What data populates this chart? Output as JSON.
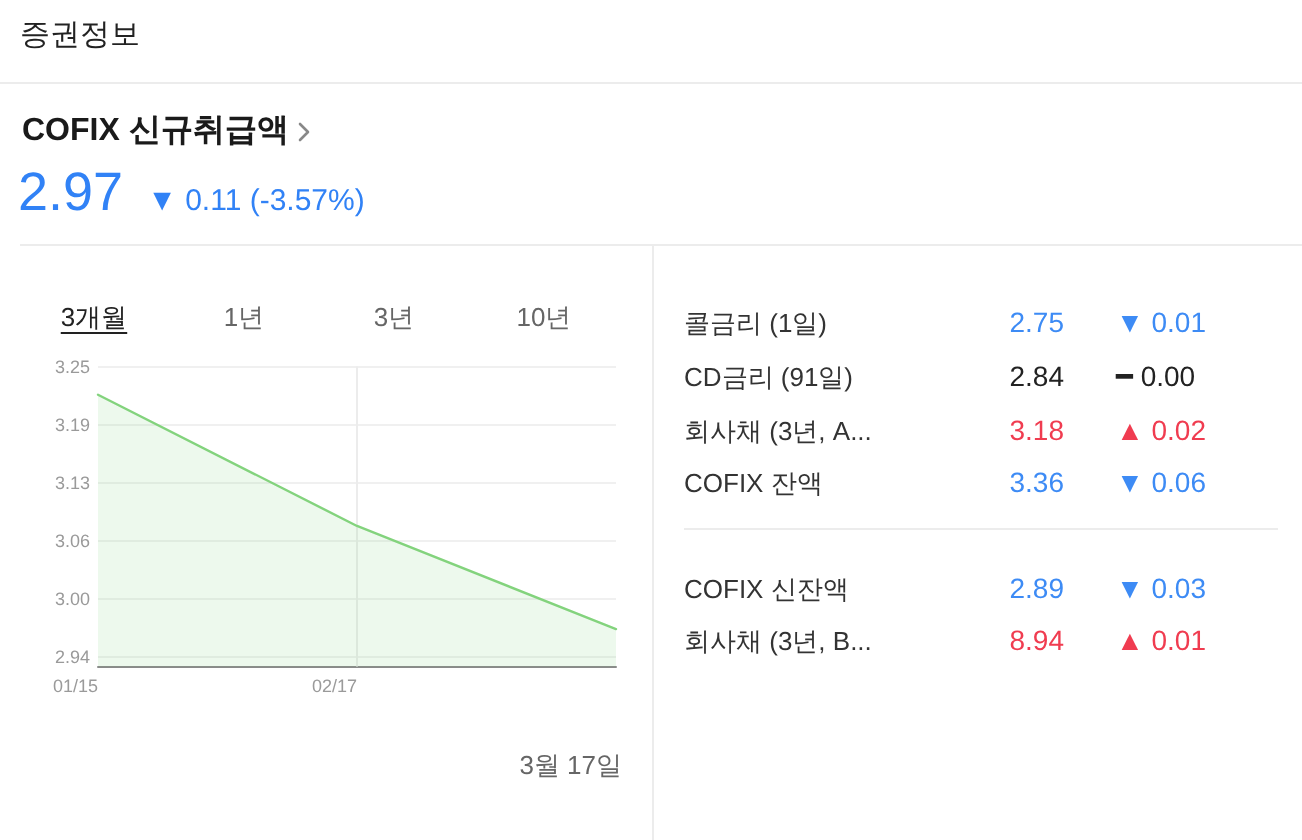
{
  "chart_data": [
    {
      "type": "area",
      "title": "COFIX 신규취급액",
      "subtitle": "2.97 ▼ 0.11 (-3.57%)",
      "categories": [
        "01/15",
        "02/17",
        null
      ],
      "values": [
        3.22,
        3.08,
        2.97
      ],
      "color": "#83d37d",
      "ylim": [
        2.93,
        3.25
      ],
      "yticks": [
        2.94,
        {
          "value": 3.002,
          "label": "3.00"
        },
        {
          "value": 3.064,
          "label": "3.06"
        },
        {
          "value": 3.126,
          "label": "3.13"
        },
        {
          "value": 3.188,
          "label": "3.19"
        },
        3.25
      ],
      "grid": "y",
      "ref_lines": [
        {
          "axis": "x",
          "value": "02/17",
          "color": "#ececec"
        }
      ],
      "annotations": [
        "증권정보",
        "3개월",
        "1년",
        "3년",
        "10년",
        "3월 17일"
      ]
    },
    {
      "type": "other",
      "categories": [
        "콜금리 (1일)",
        "CD금리 (91일)",
        "회사채 (3년, A...",
        "COFIX 잔액"
      ],
      "values": [
        2.75,
        2.84,
        3.18,
        3.36
      ],
      "colors": [
        "#3d8bf5",
        "#222222",
        "#f03c50",
        "#3d8bf5"
      ],
      "data_labels": true,
      "annotations": [
        "▼ 0.01",
        "━ 0.00",
        "▲ 0.02",
        "▼ 0.06"
      ]
    },
    {
      "type": "other",
      "categories": [
        "COFIX 신잔액",
        "회사채 (3년, B..."
      ],
      "values": [
        2.89,
        8.94
      ],
      "colors": [
        "#3d8bf5",
        "#f03c50"
      ],
      "data_labels": true,
      "annotations": [
        "▼ 0.03",
        "▲ 0.01"
      ]
    }
  ]
}
